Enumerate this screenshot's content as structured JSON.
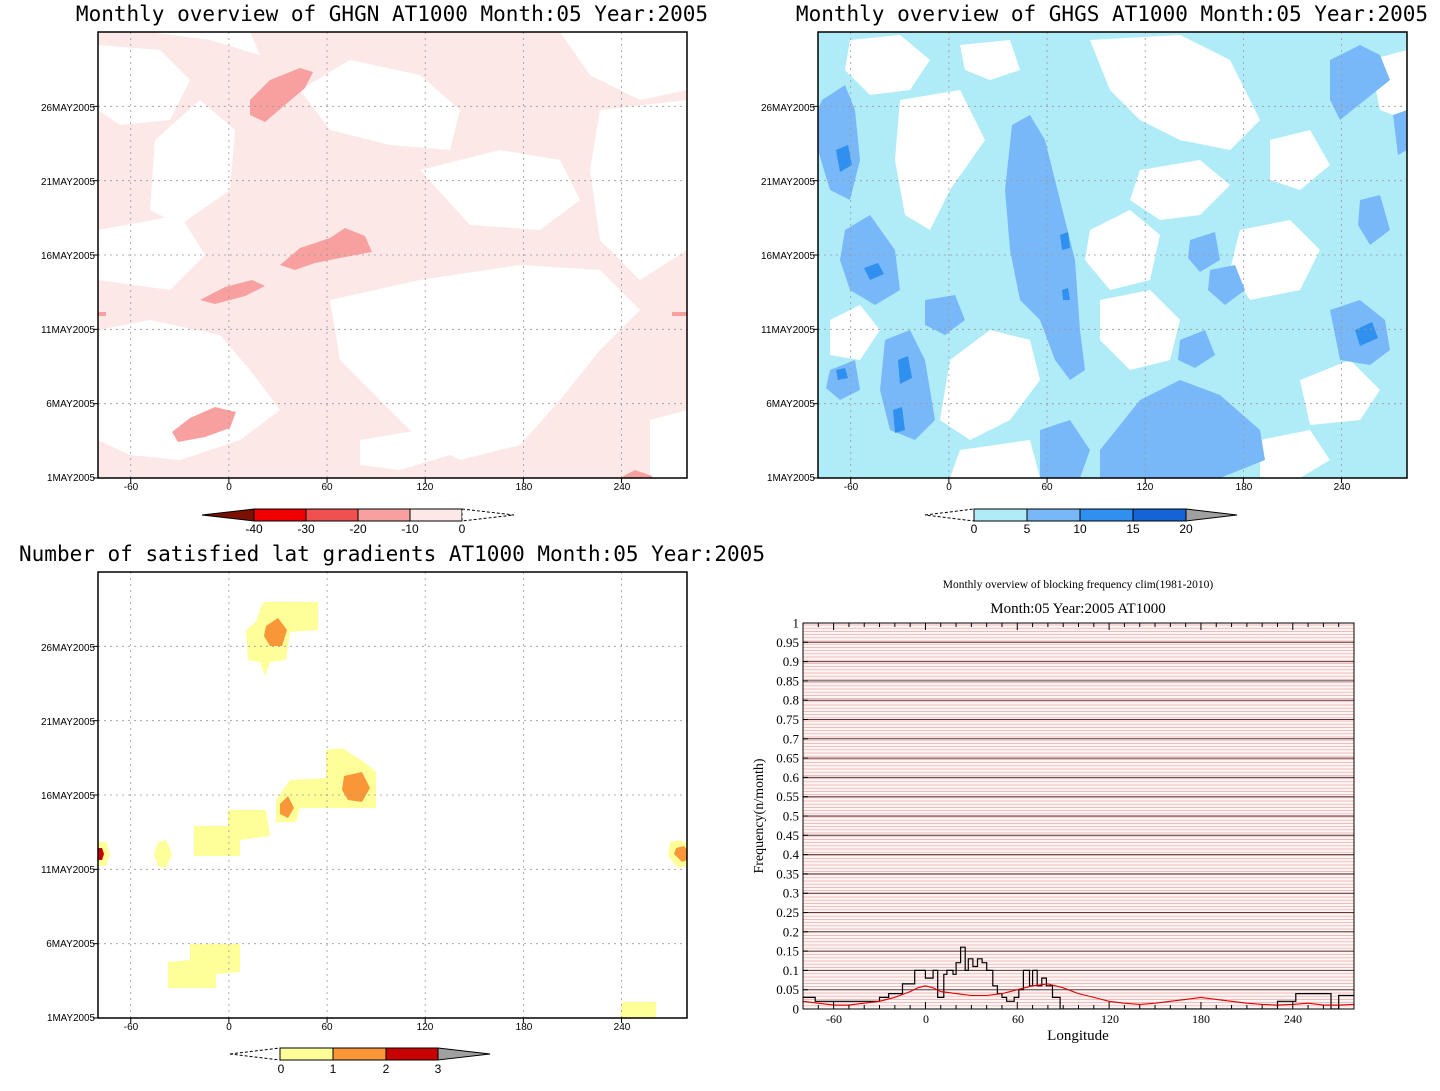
{
  "panels": [
    {
      "id": "ghgn",
      "title": "Monthly overview of GHGN AT1000 Month:05 Year:2005",
      "xticks": [
        "-60",
        "0",
        "60",
        "120",
        "180",
        "240"
      ],
      "yticks": [
        "1MAY2005",
        "6MAY2005",
        "11MAY2005",
        "16MAY2005",
        "21MAY2005",
        "26MAY2005"
      ],
      "colorbar": {
        "labels": [
          "-40",
          "-30",
          "-20",
          "-10",
          "0"
        ],
        "colors": [
          "#f00000",
          "#f05050",
          "#f8a0a0",
          "#fde8e8"
        ],
        "under": "#7a1000",
        "over": "#ffffff"
      }
    },
    {
      "id": "ghgs",
      "title": "Monthly overview of GHGS AT1000 Month:05 Year:2005",
      "xticks": [
        "-60",
        "0",
        "60",
        "120",
        "180",
        "240"
      ],
      "yticks": [
        "1MAY2005",
        "6MAY2005",
        "11MAY2005",
        "16MAY2005",
        "21MAY2005",
        "26MAY2005"
      ],
      "colorbar": {
        "labels": [
          "0",
          "5",
          "10",
          "15",
          "20"
        ],
        "colors": [
          "#b0ecf8",
          "#78b8f8",
          "#3090f0",
          "#1464d8"
        ],
        "under": "#ffffff",
        "over": "#a0a0a0"
      }
    },
    {
      "id": "nsat",
      "title": "Number of satisfied lat gradients AT1000 Month:05 Year:2005",
      "xticks": [
        "-60",
        "0",
        "60",
        "120",
        "180",
        "240"
      ],
      "yticks": [
        "1MAY2005",
        "6MAY2005",
        "11MAY2005",
        "16MAY2005",
        "21MAY2005",
        "26MAY2005"
      ],
      "colorbar": {
        "labels": [
          "0",
          "1",
          "2",
          "3"
        ],
        "colors": [
          "#ffff9a",
          "#f89638",
          "#c80000"
        ],
        "under": "#ffffff",
        "over": "#a0a0a0"
      }
    }
  ],
  "line_plot": {
    "suptitle": "Monthly overview of blocking frequency clim(1981-2010)",
    "title": "Month:05 Year:2005  AT1000",
    "xlabel": "Longitude",
    "ylabel": "Frequency(n/month)",
    "xticks": [
      "-60",
      "0",
      "60",
      "120",
      "180",
      "240"
    ],
    "yticks": [
      "0",
      "0.05",
      "0.1",
      "0.15",
      "0.2",
      "0.25",
      "0.3",
      "0.35",
      "0.4",
      "0.45",
      "0.5",
      "0.55",
      "0.6",
      "0.65",
      "0.7",
      "0.75",
      "0.8",
      "0.85",
      "0.9",
      "0.95",
      "1"
    ]
  },
  "chart_data": [
    {
      "type": "heatmap",
      "title": "Monthly overview of GHGN AT1000 Month:05 Year:2005",
      "x_range": [
        -80,
        280
      ],
      "xticks": [
        -60,
        0,
        60,
        120,
        180,
        240
      ],
      "y_range": [
        "1MAY2005",
        "31MAY2005"
      ],
      "yticks": [
        "1MAY2005",
        "6MAY2005",
        "11MAY2005",
        "16MAY2005",
        "21MAY2005",
        "26MAY2005"
      ],
      "contour_levels": [
        -40,
        -30,
        -20,
        -10,
        0
      ],
      "colors": [
        "#7a1000",
        "#f00000",
        "#f05050",
        "#f8a0a0",
        "#fde8e8",
        "#ffffff"
      ],
      "regions": [
        {
          "level": "-10 to 0",
          "color": "#fde8e8",
          "lon": [
            -80,
            280
          ],
          "date": [
            "1MAY2005",
            "31MAY2005"
          ],
          "note": "broad background"
        },
        {
          "level": "-20 to -10",
          "color": "#f8a0a0",
          "lon": [
            8,
            35
          ],
          "date": [
            "25MAY2005",
            "29MAY2005"
          ]
        },
        {
          "level": "-20 to -10",
          "color": "#f8a0a0",
          "lon": [
            30,
            90
          ],
          "date": [
            "15MAY2005",
            "17MAY2005"
          ]
        },
        {
          "level": "-20 to -10",
          "color": "#f8a0a0",
          "lon": [
            -20,
            20
          ],
          "date": [
            "13MAY2005",
            "14MAY2005"
          ]
        },
        {
          "level": "-20 to -10",
          "color": "#f8a0a0",
          "lon": [
            -35,
            5
          ],
          "date": [
            "3MAY2005",
            "5MAY2005"
          ]
        }
      ]
    },
    {
      "type": "heatmap",
      "title": "Monthly overview of GHGS AT1000 Month:05 Year:2005",
      "x_range": [
        -80,
        280
      ],
      "xticks": [
        -60,
        0,
        60,
        120,
        180,
        240
      ],
      "y_range": [
        "1MAY2005",
        "31MAY2005"
      ],
      "yticks": [
        "1MAY2005",
        "6MAY2005",
        "11MAY2005",
        "16MAY2005",
        "21MAY2005",
        "26MAY2005"
      ],
      "contour_levels": [
        0,
        5,
        10,
        15,
        20
      ],
      "colors": [
        "#ffffff",
        "#b0ecf8",
        "#78b8f8",
        "#3090f0",
        "#1464d8",
        "#a0a0a0"
      ],
      "regions": [
        {
          "level": "0 to 5",
          "color": "#b0ecf8",
          "lon": [
            -80,
            280
          ],
          "date": [
            "1MAY2005",
            "31MAY2005"
          ],
          "note": "broad background"
        },
        {
          "level": "5 to 10",
          "color": "#78b8f8",
          "lon": [
            35,
            80
          ],
          "date": [
            "1MAY2005",
            "25MAY2005"
          ]
        },
        {
          "level": "5 to 10",
          "color": "#78b8f8",
          "lon": [
            -80,
            -50
          ],
          "date": [
            "18MAY2005",
            "27MAY2005"
          ]
        },
        {
          "level": "5 to 10",
          "color": "#78b8f8",
          "lon": [
            120,
            190
          ],
          "date": [
            "1MAY2005",
            "8MAY2005"
          ]
        },
        {
          "level": "5 to 10",
          "color": "#78b8f8",
          "lon": [
            245,
            280
          ],
          "date": [
            "10MAY2005",
            "15MAY2005"
          ]
        },
        {
          "level": "10 to 15",
          "color": "#3090f0",
          "lon": [
            -75,
            -65
          ],
          "date": [
            "21MAY2005",
            "23MAY2005"
          ]
        },
        {
          "level": "10 to 15",
          "color": "#3090f0",
          "lon": [
            255,
            270
          ],
          "date": [
            "11MAY2005",
            "12MAY2005"
          ]
        }
      ]
    },
    {
      "type": "heatmap",
      "title": "Number of satisfied lat gradients AT1000 Month:05 Year:2005",
      "x_range": [
        -80,
        280
      ],
      "xticks": [
        -60,
        0,
        60,
        120,
        180,
        240
      ],
      "y_range": [
        "1MAY2005",
        "31MAY2005"
      ],
      "yticks": [
        "1MAY2005",
        "6MAY2005",
        "11MAY2005",
        "16MAY2005",
        "21MAY2005",
        "26MAY2005"
      ],
      "contour_levels": [
        0,
        1,
        2,
        3
      ],
      "colors": [
        "#ffffff",
        "#ffff9a",
        "#f89638",
        "#c80000",
        "#a0a0a0"
      ],
      "regions": [
        {
          "level": "0 to 1",
          "color": "#ffff9a",
          "lon": [
            10,
            55
          ],
          "date": [
            "24MAY2005",
            "29MAY2005"
          ]
        },
        {
          "level": "1 to 2",
          "color": "#f89638",
          "lon": [
            22,
            35
          ],
          "date": [
            "26MAY2005",
            "27MAY2005"
          ]
        },
        {
          "level": "0 to 1",
          "color": "#ffff9a",
          "lon": [
            30,
            90
          ],
          "date": [
            "15MAY2005",
            "19MAY2005"
          ]
        },
        {
          "level": "1 to 2",
          "color": "#f89638",
          "lon": [
            70,
            85
          ],
          "date": [
            "16MAY2005",
            "17MAY2005"
          ]
        },
        {
          "level": "1 to 2",
          "color": "#f89638",
          "lon": [
            30,
            40
          ],
          "date": [
            "15MAY2005",
            "16MAY2005"
          ]
        },
        {
          "level": "0 to 1",
          "color": "#ffff9a",
          "lon": [
            -20,
            25
          ],
          "date": [
            "13MAY2005",
            "15MAY2005"
          ]
        },
        {
          "level": "0 to 1",
          "color": "#ffff9a",
          "lon": [
            -35,
            5
          ],
          "date": [
            "3MAY2005",
            "5MAY2005"
          ]
        },
        {
          "level": "0 to 1",
          "color": "#ffff9a",
          "lon": [
            -80,
            -75
          ],
          "date": [
            "12MAY2005",
            "13MAY2005"
          ]
        },
        {
          "level": "0 to 1",
          "color": "#ffff9a",
          "lon": [
            -45,
            -35
          ],
          "date": [
            "12MAY2005",
            "13MAY2005"
          ]
        },
        {
          "level": "1 to 2",
          "color": "#f89638",
          "lon": [
            270,
            280
          ],
          "date": [
            "12MAY2005",
            "13MAY2005"
          ]
        },
        {
          "level": "0 to 1",
          "color": "#ffff9a",
          "lon": [
            240,
            260
          ],
          "date": [
            "1MAY2005",
            "2MAY2005"
          ]
        }
      ]
    },
    {
      "type": "line",
      "title": "Month:05 Year:2005  AT1000",
      "subtitle": "Monthly overview of blocking frequency clim(1981-2010)",
      "xlabel": "Longitude",
      "ylabel": "Frequency(n/month)",
      "xlim": [
        -80,
        280
      ],
      "ylim": [
        0,
        1
      ],
      "grid": true,
      "series": [
        {
          "color": "#000000",
          "x": [
            -80,
            -72,
            -72,
            -30,
            -30,
            -24,
            -24,
            -15,
            -15,
            -7,
            -7,
            0,
            0,
            5,
            5,
            8,
            8,
            12,
            12,
            14,
            14,
            18,
            18,
            20,
            20,
            23,
            23,
            26,
            26,
            28,
            28,
            31,
            31,
            34,
            34,
            37,
            37,
            40,
            40,
            44,
            44,
            47,
            47,
            50,
            50,
            53,
            53,
            58,
            58,
            61,
            61,
            64,
            64,
            68,
            68,
            70,
            70,
            73,
            73,
            76,
            76,
            79,
            79,
            83,
            83,
            88,
            88,
            92,
            92,
            230,
            230,
            242,
            242,
            265,
            265,
            270,
            270,
            280
          ],
          "y": [
            0.03,
            0.03,
            0.02,
            0.02,
            0.03,
            0.03,
            0.04,
            0.04,
            0.065,
            0.065,
            0.1,
            0.1,
            0.08,
            0.08,
            0.1,
            0.1,
            0.03,
            0.03,
            0.09,
            0.09,
            0.1,
            0.1,
            0.09,
            0.09,
            0.12,
            0.12,
            0.16,
            0.16,
            0.1,
            0.1,
            0.13,
            0.13,
            0.11,
            0.11,
            0.13,
            0.13,
            0.12,
            0.12,
            0.1,
            0.1,
            0.06,
            0.06,
            0.04,
            0.04,
            0.03,
            0.03,
            0.02,
            0.02,
            0.03,
            0.03,
            0.05,
            0.05,
            0.1,
            0.1,
            0.06,
            0.06,
            0.1,
            0.1,
            0.06,
            0.06,
            0.08,
            0.08,
            0.06,
            0.06,
            0.03,
            0.03,
            0.0,
            0.0,
            0.0,
            0.0,
            0.02,
            0.02,
            0.04,
            0.04,
            0.0,
            0.0,
            0.035,
            0.035
          ]
        },
        {
          "color": "#e00000",
          "x": [
            -80,
            -70,
            -60,
            -50,
            -40,
            -30,
            -20,
            -10,
            -5,
            0,
            5,
            10,
            20,
            30,
            40,
            50,
            60,
            70,
            80,
            90,
            100,
            110,
            120,
            130,
            140,
            150,
            160,
            170,
            180,
            190,
            200,
            210,
            220,
            230,
            240,
            250,
            260,
            270,
            280
          ],
          "y": [
            0.02,
            0.015,
            0.01,
            0.01,
            0.015,
            0.02,
            0.03,
            0.045,
            0.055,
            0.06,
            0.055,
            0.045,
            0.04,
            0.035,
            0.035,
            0.04,
            0.05,
            0.06,
            0.065,
            0.055,
            0.04,
            0.03,
            0.02,
            0.015,
            0.012,
            0.015,
            0.02,
            0.025,
            0.03,
            0.025,
            0.02,
            0.015,
            0.012,
            0.01,
            0.012,
            0.015,
            0.01,
            0.01,
            0.012
          ]
        }
      ]
    }
  ]
}
